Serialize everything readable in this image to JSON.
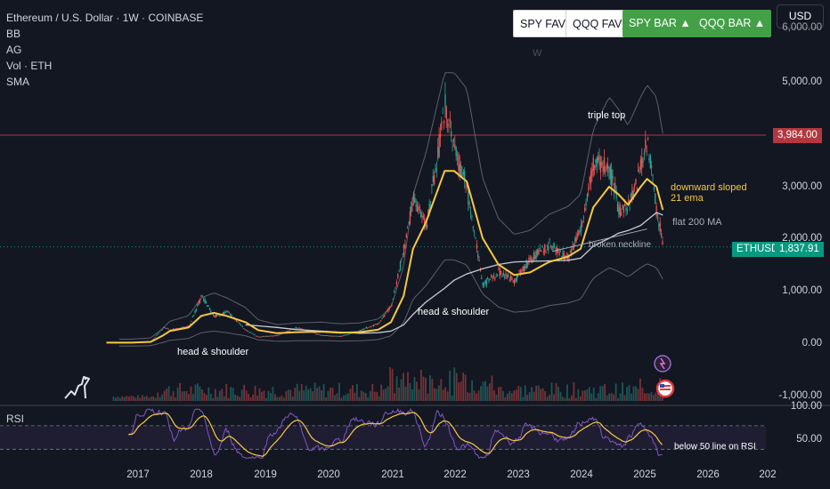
{
  "header": {
    "symbol_title": "Ethereum / U.S. Dollar · 1W · COINBASE",
    "indicators": [
      "BB",
      "AG",
      "Vol · ETH",
      "SMA"
    ]
  },
  "toolbar": {
    "buttons": [
      {
        "label": "SPY FAV",
        "style": "white"
      },
      {
        "label": "QQQ FAV",
        "style": "white"
      },
      {
        "label": "SPY BAR ▲",
        "style": "green"
      },
      {
        "label": "QQQ BAR ▲",
        "style": "green"
      }
    ],
    "currency": "USD",
    "faint_marker": "W"
  },
  "price_axis": {
    "ticks": [
      "5,000.00",
      "3,000.00",
      "2,000.00",
      "1,000.00",
      "0.00",
      "-1,000.00"
    ],
    "top_partial": "6,000.00"
  },
  "price_tags": {
    "resistance": {
      "label": "3,984.00",
      "color": "#b2373f"
    },
    "symbol": {
      "label": "ETHUSD",
      "color": "#089981"
    },
    "current": {
      "label": "1,837.91",
      "color": "#089981"
    }
  },
  "annotations": {
    "triple_top": "triple top",
    "ema_note_1": "downward sloped",
    "ema_note_2": "21 ema",
    "ma_note": "flat 200 MA",
    "neckline": "broken neckline",
    "hs_right": "head & shoulder",
    "hs_left": "head & shoulder",
    "rsi_note": "below 50 line on RSI"
  },
  "time_axis": {
    "ticks": [
      "2017",
      "2018",
      "2019",
      "2020",
      "2021",
      "2022",
      "2023",
      "2024",
      "2025",
      "2026",
      "202"
    ]
  },
  "rsi_panel": {
    "label": "RSI",
    "ticks": [
      "100.00",
      "50.00"
    ]
  },
  "colors": {
    "background": "#131722",
    "ema": "#f7c843",
    "sma": "#c9ccd4",
    "bollinger": "#5d606b",
    "resistance": "#b2373f",
    "up": "#26a69a",
    "down": "#ef5350",
    "rsi_line": "#7e57c2",
    "rsi_ma": "#f7c843",
    "rsi_band": "#2a2340"
  },
  "chart_data": {
    "type": "line",
    "title": "Ethereum / U.S. Dollar · 1W · COINBASE",
    "xlabel": "",
    "ylabel": "",
    "ylim": [
      -1000,
      6000
    ],
    "grid": false,
    "price_line": 1837.91,
    "horizontal_line": 3984.0,
    "x": [
      2016.5,
      2016.9,
      2017.2,
      2017.4,
      2017.5,
      2017.8,
      2018.0,
      2018.2,
      2018.4,
      2018.7,
      2018.9,
      2019.2,
      2019.5,
      2019.9,
      2020.2,
      2020.5,
      2020.8,
      2021.0,
      2021.2,
      2021.35,
      2021.55,
      2021.85,
      2022.0,
      2022.2,
      2022.45,
      2022.7,
      2022.95,
      2023.2,
      2023.5,
      2023.8,
      2024.0,
      2024.2,
      2024.45,
      2024.6,
      2024.75,
      2024.95,
      2025.05,
      2025.2,
      2025.3
    ],
    "series": [
      {
        "name": "ETHUSD",
        "values": [
          10,
          12,
          40,
          300,
          250,
          320,
          900,
          500,
          600,
          250,
          120,
          150,
          300,
          150,
          130,
          240,
          380,
          730,
          1800,
          2800,
          2200,
          4600,
          3700,
          2900,
          1100,
          1350,
          1200,
          1600,
          1900,
          1600,
          2250,
          3500,
          3300,
          2550,
          2600,
          3400,
          3900,
          2500,
          1837.91
        ]
      },
      {
        "name": "21 EMA",
        "values": [
          10,
          11,
          25,
          150,
          230,
          300,
          520,
          580,
          520,
          400,
          250,
          190,
          210,
          220,
          200,
          210,
          260,
          400,
          900,
          1800,
          2300,
          3300,
          3300,
          3100,
          2000,
          1500,
          1300,
          1350,
          1550,
          1650,
          1800,
          2600,
          3000,
          2850,
          2650,
          3000,
          3150,
          3000,
          2550
        ]
      },
      {
        "name": "200 SMA",
        "values": [
          null,
          null,
          null,
          null,
          null,
          null,
          null,
          null,
          null,
          350,
          330,
          300,
          260,
          230,
          210,
          190,
          200,
          230,
          350,
          550,
          780,
          1050,
          1200,
          1320,
          1420,
          1500,
          1550,
          1560,
          1570,
          1580,
          1620,
          1850,
          2000,
          2100,
          2150,
          2250,
          2350,
          2500,
          2450
        ]
      }
    ]
  }
}
